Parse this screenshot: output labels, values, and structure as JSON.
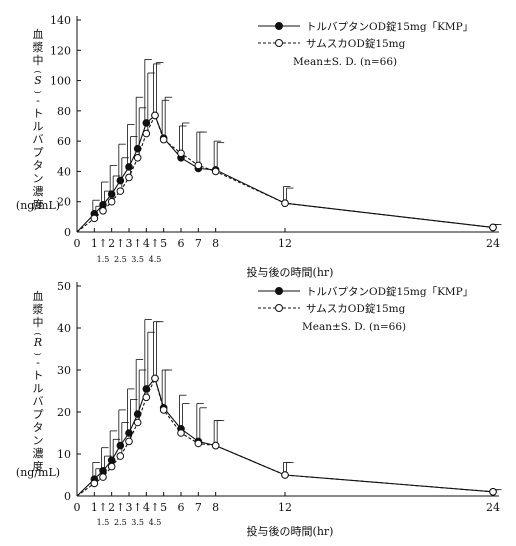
{
  "chart_data": [
    {
      "type": "line",
      "ylabel": "血漿中(S)-トルバプタン濃度",
      "yunit": "(ng/mL)",
      "xlabel": "投与後の時間(hr)",
      "ylim": [
        0,
        140
      ],
      "yticks": [
        0,
        20,
        40,
        60,
        80,
        100,
        120,
        140
      ],
      "xticks": [
        0,
        1,
        2,
        3,
        4,
        5,
        6,
        7,
        8,
        12,
        24
      ],
      "xtick_labels": [
        "0",
        "1",
        "2",
        "3",
        "4",
        "5",
        "6",
        "7",
        "8",
        "12",
        "24"
      ],
      "subticks": [
        "1.5",
        "2.5",
        "3.5",
        "4.5"
      ],
      "legend": {
        "series_a": "トルバプタンOD錠15mg「KMP」",
        "series_b": "サムスカOD錠15mg",
        "note": "Mean±S. D. (n=66)"
      },
      "legend_position": "top-right",
      "grid": false,
      "series": [
        {
          "name": "トルバプタンOD錠15mg「KMP」",
          "marker": "filled-circle",
          "line": "solid",
          "x": [
            0,
            1,
            1.5,
            2,
            2.5,
            3,
            3.5,
            4,
            4.5,
            5,
            6,
            7,
            8,
            12,
            24
          ],
          "y": [
            0,
            12,
            18,
            25,
            34,
            43,
            55,
            72,
            77,
            62,
            49,
            42,
            41,
            19,
            3
          ],
          "sd": [
            0,
            9,
            15,
            19,
            24,
            28,
            34,
            42,
            34,
            25,
            21,
            24,
            19,
            11,
            2
          ]
        },
        {
          "name": "サムスカOD錠15mg",
          "marker": "open-circle",
          "line": "dashed",
          "x": [
            0,
            1,
            1.5,
            2,
            2.5,
            3,
            3.5,
            4,
            4.5,
            5,
            6,
            7,
            8,
            12,
            24
          ],
          "y": [
            0,
            9,
            14,
            20,
            27,
            36,
            49,
            65,
            77,
            61,
            52,
            44,
            40,
            19,
            3
          ],
          "sd": [
            0,
            8,
            13,
            17,
            22,
            27,
            33,
            40,
            35,
            28,
            20,
            22,
            19,
            10,
            2
          ]
        }
      ]
    },
    {
      "type": "line",
      "ylabel": "血漿中(R)-トルバプタン濃度",
      "yunit": "(ng/mL)",
      "xlabel": "投与後の時間(hr)",
      "ylim": [
        0,
        50
      ],
      "yticks": [
        0,
        10,
        20,
        30,
        40,
        50
      ],
      "xticks": [
        0,
        1,
        2,
        3,
        4,
        5,
        6,
        7,
        8,
        12,
        24
      ],
      "xtick_labels": [
        "0",
        "1",
        "2",
        "3",
        "4",
        "5",
        "6",
        "7",
        "8",
        "12",
        "24"
      ],
      "subticks": [
        "1.5",
        "2.5",
        "3.5",
        "4.5"
      ],
      "legend": {
        "series_a": "トルバプタンOD錠15mg「KMP」",
        "series_b": "サムスカOD錠15mg",
        "note": "Mean±S. D. (n=66)"
      },
      "legend_position": "top-right",
      "grid": false,
      "series": [
        {
          "name": "トルバプタンOD錠15mg「KMP」",
          "marker": "filled-circle",
          "line": "solid",
          "x": [
            0,
            1,
            1.5,
            2,
            2.5,
            3,
            3.5,
            4,
            4.5,
            5,
            6,
            7,
            8,
            12,
            24
          ],
          "y": [
            0,
            4,
            6,
            8.5,
            12,
            15,
            19.5,
            25.5,
            28,
            21,
            16,
            13,
            12,
            5,
            1
          ],
          "sd": [
            0,
            4,
            5.5,
            7,
            8.5,
            10.5,
            13,
            16.5,
            13.5,
            9,
            8,
            9,
            6,
            3,
            0.5
          ]
        },
        {
          "name": "サムスカOD錠15mg",
          "marker": "open-circle",
          "line": "dashed",
          "x": [
            0,
            1,
            1.5,
            2,
            2.5,
            3,
            3.5,
            4,
            4.5,
            5,
            6,
            7,
            8,
            12,
            24
          ],
          "y": [
            0,
            3,
            4.5,
            7,
            9.5,
            13,
            17.5,
            23.5,
            28,
            20.5,
            15,
            12.5,
            12,
            5,
            1
          ],
          "sd": [
            0,
            3.5,
            5,
            6.5,
            8,
            10,
            12.5,
            15.5,
            13.5,
            9.5,
            7,
            8.5,
            6,
            3,
            0.5
          ]
        }
      ]
    }
  ]
}
